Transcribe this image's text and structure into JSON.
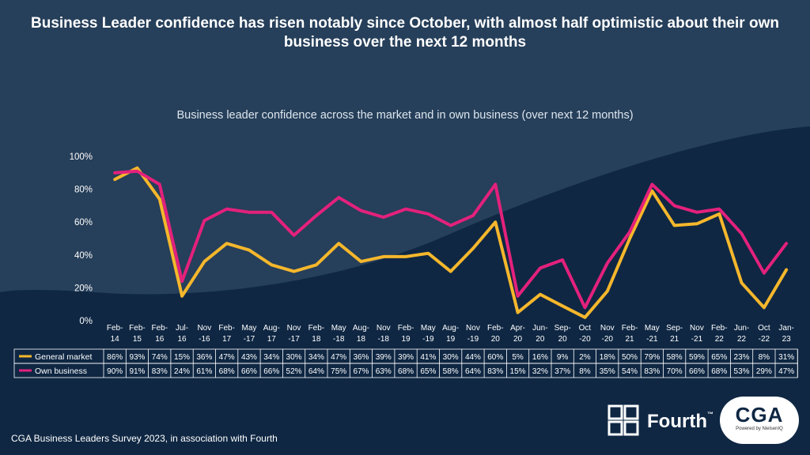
{
  "title": "Business Leader confidence has risen notably since October, with almost half optimistic about their own business over the next 12 months",
  "footer": "CGA Business Leaders Survey 2023, in association with Fourth",
  "logos": {
    "fourth": "Fourth",
    "fourth_tm": "™",
    "cga": "CGA",
    "cga_sub": "Powered by NielsenIQ"
  },
  "colors": {
    "general": "#f5b72c",
    "own": "#e3217c",
    "background": "#0f2743",
    "panel": "#263f5a",
    "grid": "#ffffff"
  },
  "chart_data": {
    "type": "line",
    "title": "Business leader confidence across the market and in own business (over next 12 months)",
    "xlabel": "",
    "ylabel": "",
    "ylim": [
      0,
      100
    ],
    "yticks": [
      "0%",
      "20%",
      "40%",
      "60%",
      "80%",
      "100%"
    ],
    "categories": [
      [
        "Feb-",
        "14"
      ],
      [
        "Feb-",
        "15"
      ],
      [
        "Feb-",
        "16"
      ],
      [
        "Jul-",
        "16"
      ],
      [
        "Nov",
        "-16"
      ],
      [
        "Feb-",
        "17"
      ],
      [
        "May",
        "-17"
      ],
      [
        "Aug-",
        "17"
      ],
      [
        "Nov",
        "-17"
      ],
      [
        "Feb-",
        "18"
      ],
      [
        "May",
        "-18"
      ],
      [
        "Aug-",
        "18"
      ],
      [
        "Nov",
        "-18"
      ],
      [
        "Feb-",
        "19"
      ],
      [
        "May",
        "-19"
      ],
      [
        "Aug-",
        "19"
      ],
      [
        "Nov",
        "-19"
      ],
      [
        "Feb-",
        "20"
      ],
      [
        "Apr-",
        "20"
      ],
      [
        "Jun-",
        "20"
      ],
      [
        "Sep-",
        "20"
      ],
      [
        "Oct",
        "-20"
      ],
      [
        "Nov",
        "-20"
      ],
      [
        "Feb-",
        "21"
      ],
      [
        "May",
        "-21"
      ],
      [
        "Sep-",
        "21"
      ],
      [
        "Nov",
        "-21"
      ],
      [
        "Feb-",
        "22"
      ],
      [
        "Jun-",
        "22"
      ],
      [
        "Oct",
        "-22"
      ],
      [
        "Jan-",
        "23"
      ]
    ],
    "series": [
      {
        "name": "General market",
        "color": "#f5b72c",
        "values": [
          86,
          93,
          74,
          15,
          36,
          47,
          43,
          34,
          30,
          34,
          47,
          36,
          39,
          39,
          41,
          30,
          44,
          60,
          5,
          16,
          9,
          2,
          18,
          50,
          79,
          58,
          59,
          65,
          23,
          8,
          31
        ],
        "labels": [
          "86%",
          "93%",
          "74%",
          "15%",
          "36%",
          "47%",
          "43%",
          "34%",
          "30%",
          "34%",
          "47%",
          "36%",
          "39%",
          "39%",
          "41%",
          "30%",
          "44%",
          "60%",
          "5%",
          "16%",
          "9%",
          "2%",
          "18%",
          "50%",
          "79%",
          "58%",
          "59%",
          "65%",
          "23%",
          "8%",
          "31%"
        ]
      },
      {
        "name": "Own business",
        "color": "#e3217c",
        "values": [
          90,
          91,
          83,
          24,
          61,
          68,
          66,
          66,
          52,
          64,
          75,
          67,
          63,
          68,
          65,
          58,
          64,
          83,
          15,
          32,
          37,
          8,
          35,
          54,
          83,
          70,
          66,
          68,
          53,
          29,
          47
        ],
        "labels": [
          "90%",
          "91%",
          "83%",
          "24%",
          "61%",
          "68%",
          "66%",
          "66%",
          "52%",
          "64%",
          "75%",
          "67%",
          "63%",
          "68%",
          "65%",
          "58%",
          "64%",
          "83%",
          "15%",
          "32%",
          "37%",
          "8%",
          "35%",
          "54%",
          "83%",
          "70%",
          "66%",
          "68%",
          "53%",
          "29%",
          "47%"
        ]
      }
    ],
    "legend": "table-below"
  }
}
